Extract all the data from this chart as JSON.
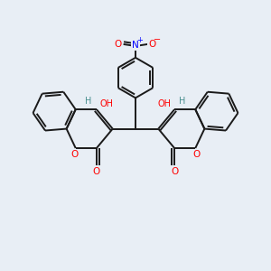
{
  "background_color": "#e8eef5",
  "atom_colors": {
    "O": "#ff0000",
    "N": "#0000ff",
    "H": "#4a9090"
  },
  "bond_color": "#1a1a1a",
  "bond_width": 1.4,
  "figsize": [
    3.0,
    3.0
  ],
  "dpi": 100,
  "xlim": [
    0,
    10
  ],
  "ylim": [
    0,
    10
  ]
}
